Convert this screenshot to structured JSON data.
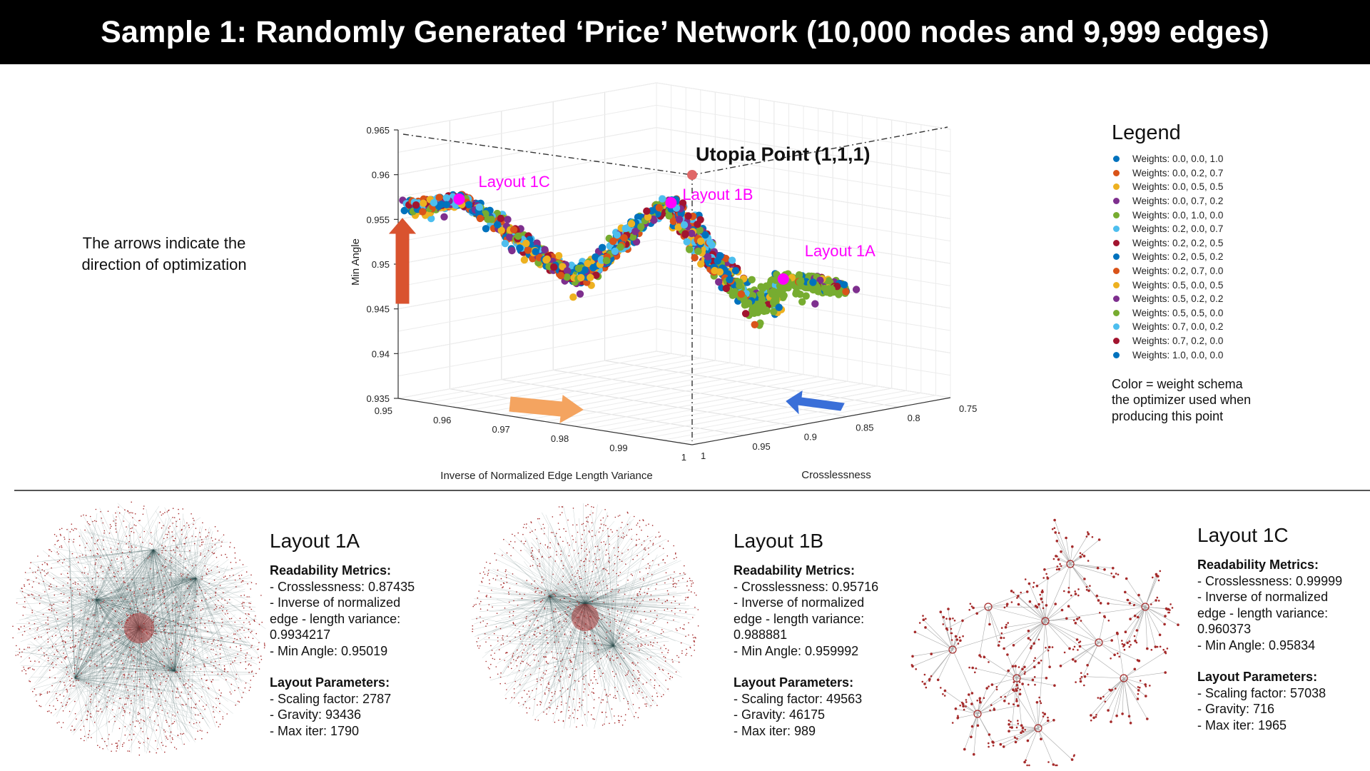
{
  "title": "Sample 1: Randomly Generated ‘Price’ Network (10,000 nodes and 9,999 edges)",
  "arrow_note": "The arrows indicate the direction of optimization",
  "chart_data": {
    "type": "scatter",
    "projection": "3d",
    "xlabel": "Inverse of Normalized Edge Length Variance",
    "ylabel": "Crosslessness",
    "zlabel": "Min Angle",
    "x_ticks": [
      "0.95",
      "0.96",
      "0.97",
      "0.98",
      "0.99",
      "1"
    ],
    "y_ticks": [
      "1",
      "0.95",
      "0.9",
      "0.85",
      "0.8",
      "0.75"
    ],
    "z_ticks": [
      "0.935",
      "0.94",
      "0.945",
      "0.95",
      "0.955",
      "0.96",
      "0.965"
    ],
    "xlim": [
      0.95,
      1.0
    ],
    "ylim": [
      0.75,
      1.0
    ],
    "zlim": [
      0.935,
      0.965
    ],
    "utopia": {
      "label": "Utopia Point (1,1,1)",
      "x": 1,
      "y": 1,
      "z": 1
    },
    "highlighted": [
      {
        "label": "Layout 1A",
        "x": 0.9934217,
        "y": 0.87435,
        "z": 0.95019
      },
      {
        "label": "Layout 1B",
        "x": 0.988881,
        "y": 0.95716,
        "z": 0.959992
      },
      {
        "label": "Layout 1C",
        "x": 0.960373,
        "y": 0.99999,
        "z": 0.95834
      }
    ],
    "series": [
      {
        "name": "Weights: 0.0, 0.0, 1.0",
        "color": "#0072BD"
      },
      {
        "name": "Weights: 0.0, 0.2, 0.7",
        "color": "#D95319"
      },
      {
        "name": "Weights: 0.0, 0.5, 0.5",
        "color": "#EDB120"
      },
      {
        "name": "Weights: 0.0, 0.7, 0.2",
        "color": "#7E2F8E"
      },
      {
        "name": "Weights: 0.0, 1.0, 0.0",
        "color": "#77AC30"
      },
      {
        "name": "Weights: 0.2, 0.0, 0.7",
        "color": "#4DBEEE"
      },
      {
        "name": "Weights: 0.2, 0.2, 0.5",
        "color": "#A2142F"
      },
      {
        "name": "Weights: 0.2, 0.5, 0.2",
        "color": "#0072BD"
      },
      {
        "name": "Weights: 0.2, 0.7, 0.0",
        "color": "#D95319"
      },
      {
        "name": "Weights: 0.5, 0.0, 0.5",
        "color": "#EDB120"
      },
      {
        "name": "Weights: 0.5, 0.2, 0.2",
        "color": "#7E2F8E"
      },
      {
        "name": "Weights: 0.5, 0.5, 0.0",
        "color": "#77AC30"
      },
      {
        "name": "Weights: 0.7, 0.0, 0.2",
        "color": "#4DBEEE"
      },
      {
        "name": "Weights: 0.7, 0.2, 0.0",
        "color": "#A2142F"
      },
      {
        "name": "Weights: 1.0, 0.0, 0.0",
        "color": "#0072BD"
      }
    ],
    "ridge": [
      {
        "x": 0.951,
        "y": 0.995,
        "z": 0.9565
      },
      {
        "x": 0.956,
        "y": 0.998,
        "z": 0.9573
      },
      {
        "x": 0.9604,
        "y": 1.0,
        "z": 0.9583
      },
      {
        "x": 0.966,
        "y": 0.997,
        "z": 0.9565
      },
      {
        "x": 0.972,
        "y": 0.992,
        "z": 0.9535
      },
      {
        "x": 0.978,
        "y": 0.987,
        "z": 0.951
      },
      {
        "x": 0.982,
        "y": 0.984,
        "z": 0.9535
      },
      {
        "x": 0.986,
        "y": 0.975,
        "z": 0.9575
      },
      {
        "x": 0.9889,
        "y": 0.957,
        "z": 0.96
      },
      {
        "x": 0.99,
        "y": 0.935,
        "z": 0.955
      },
      {
        "x": 0.991,
        "y": 0.91,
        "z": 0.9505
      },
      {
        "x": 0.9925,
        "y": 0.89,
        "z": 0.947
      },
      {
        "x": 0.9934,
        "y": 0.874,
        "z": 0.9502
      },
      {
        "x": 0.995,
        "y": 0.855,
        "z": 0.9495
      },
      {
        "x": 0.997,
        "y": 0.835,
        "z": 0.9485
      }
    ]
  },
  "legend": {
    "title": "Legend",
    "note": "Color = weight schema the optimizer used when producing this point"
  },
  "colors": {
    "arrow_red": "#D9532F",
    "arrow_orange": "#F4A460",
    "arrow_blue": "#3A6FD8",
    "highlight": "#FF00FF",
    "utopia_dot": "#E06666",
    "node_red": "#A52A2A",
    "edge_teal": "#2F4F4F"
  },
  "layouts": [
    {
      "title": "Layout 1A",
      "readability_head": "Readability Metrics:",
      "readability": [
        "- Crosslessness: 0.87435",
        "- Inverse of normalized",
        "edge - length variance:",
        "0.9934217",
        "- Min Angle: 0.95019"
      ],
      "params_head": "Layout Parameters:",
      "params": [
        "- Scaling factor: 2787",
        "- Gravity: 93436",
        "- Max iter: 1790"
      ]
    },
    {
      "title": "Layout 1B",
      "readability_head": "Readability Metrics:",
      "readability": [
        "- Crosslessness: 0.95716",
        "- Inverse of normalized",
        "edge - length variance:",
        "0.988881",
        "- Min Angle: 0.959992"
      ],
      "params_head": "Layout Parameters:",
      "params": [
        "- Scaling factor: 49563",
        "- Gravity: 46175",
        "- Max iter: 989"
      ]
    },
    {
      "title": "Layout 1C",
      "readability_head": "Readability Metrics:",
      "readability": [
        "- Crosslessness: 0.99999",
        "- Inverse of normalized",
        "edge - length variance:",
        "0.960373",
        "- Min Angle: 0.95834"
      ],
      "params_head": "Layout Parameters:",
      "params": [
        "- Scaling factor: 57038",
        "- Gravity: 716",
        "- Max iter: 1965"
      ]
    }
  ]
}
